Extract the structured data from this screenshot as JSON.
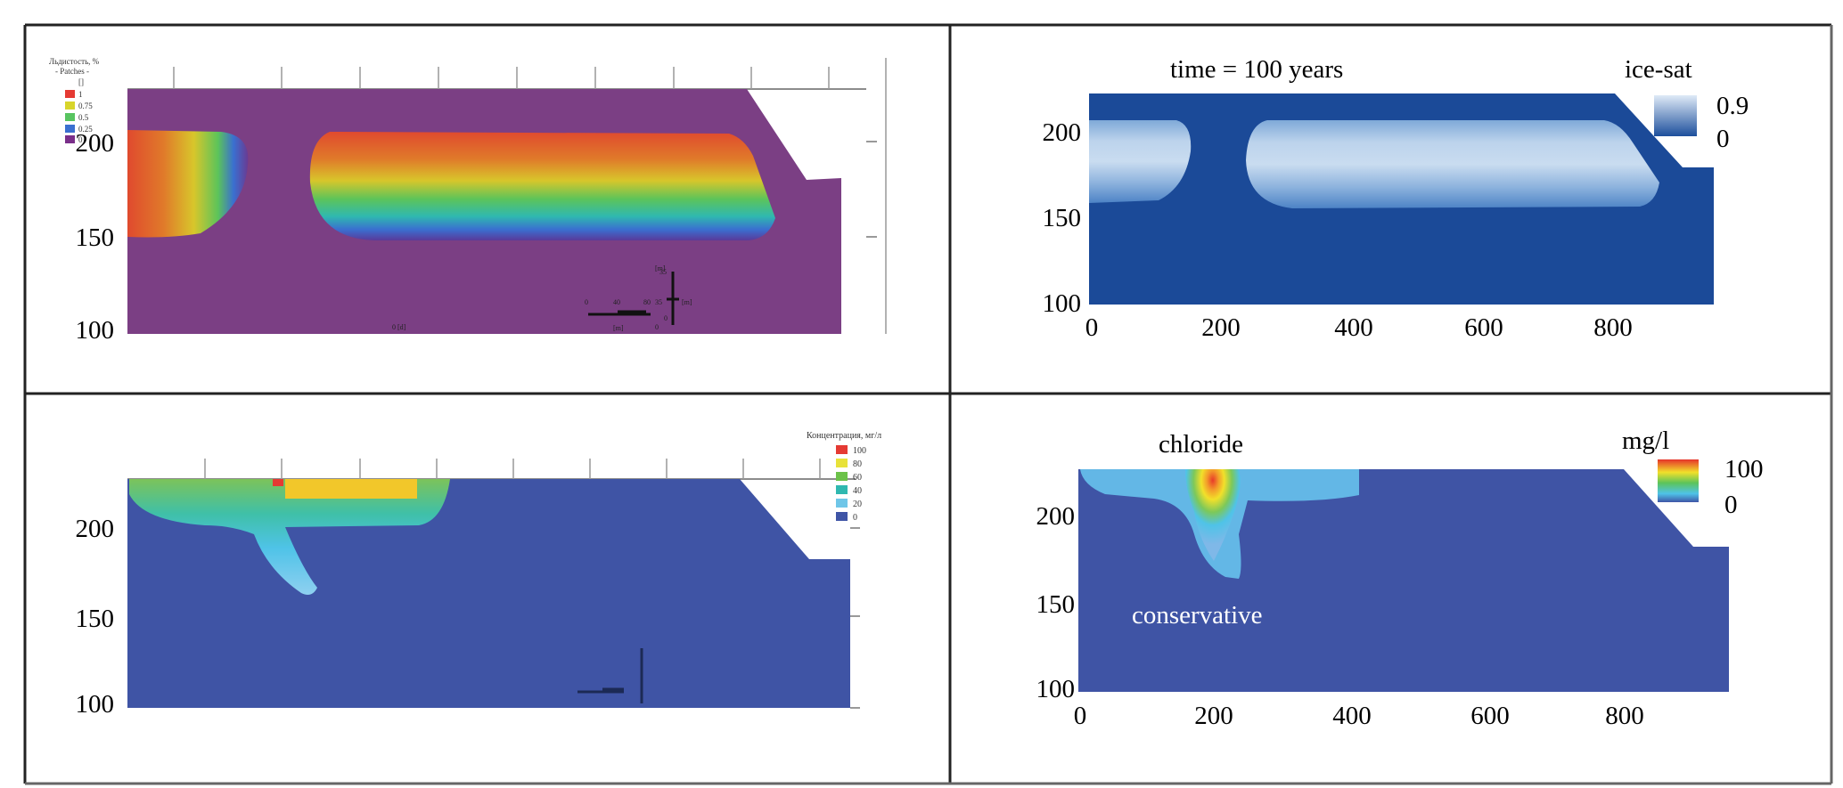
{
  "figure": {
    "panels": [
      {
        "id": "top-left",
        "legend": {
          "title": "Льдистость, %",
          "subtitle": "- Patches -",
          "extra": "[]",
          "entries": [
            {
              "label": "1",
              "color": "#e53a33"
            },
            {
              "label": "0.75",
              "color": "#d8d52b"
            },
            {
              "label": "0.5",
              "color": "#58c460"
            },
            {
              "label": "0.25",
              "color": "#3a6fd0"
            },
            {
              "label": "0",
              "color": "#7a2f8a"
            }
          ]
        },
        "y_ticks": [
          "200",
          "150",
          "100"
        ],
        "scale_labels": [
          "0",
          "40",
          "80",
          "[m]",
          "[m]",
          "0",
          "35",
          "[m]",
          "35",
          "0"
        ],
        "bottom_note": "0 [d]"
      },
      {
        "id": "top-right",
        "title": "time = 100 years",
        "colorbar": {
          "title": "ice-sat",
          "max": "0.9",
          "min": "0"
        },
        "y_ticks": [
          "200",
          "150",
          "100"
        ],
        "x_ticks": [
          "0",
          "200",
          "400",
          "600",
          "800"
        ]
      },
      {
        "id": "bottom-left",
        "legend": {
          "title": "Концентрация, мг/л",
          "entries": [
            {
              "label": "100",
              "color": "#e53a33"
            },
            {
              "label": "80",
              "color": "#e8e23a"
            },
            {
              "label": "60",
              "color": "#6cc24a"
            },
            {
              "label": "40",
              "color": "#2fb8b0"
            },
            {
              "label": "20",
              "color": "#6fc6e8"
            },
            {
              "label": "0",
              "color": "#3f55a6"
            }
          ]
        },
        "y_ticks": [
          "200",
          "150",
          "100"
        ]
      },
      {
        "id": "bottom-right",
        "annotations": {
          "top": "chloride",
          "bottom": "conservative"
        },
        "colorbar": {
          "title": "mg/l",
          "max": "100",
          "min": "0"
        },
        "y_ticks": [
          "200",
          "150",
          "100"
        ],
        "x_ticks": [
          "0",
          "200",
          "400",
          "600",
          "800"
        ]
      }
    ]
  },
  "chart_data": [
    {
      "type": "heatmap",
      "title": "",
      "quantity": "ice content (Льдистость, %)",
      "ylim": [
        100,
        225
      ],
      "yticks": [
        100,
        150,
        200
      ],
      "frozen_zones_x_m": [
        [
          0,
          150
        ],
        [
          240,
          900
        ]
      ],
      "frozen_depth_range_m": [
        150,
        205
      ]
    },
    {
      "type": "heatmap",
      "title": "time = 100 years",
      "quantity": "ice-sat",
      "value_range": [
        0,
        0.9
      ],
      "xlim": [
        0,
        950
      ],
      "xticks": [
        0,
        200,
        400,
        600,
        800
      ],
      "ylim": [
        100,
        225
      ],
      "yticks": [
        100,
        150,
        200
      ],
      "frozen_zones_x_m": [
        [
          0,
          150
        ],
        [
          240,
          870
        ]
      ],
      "frozen_depth_range_m": [
        160,
        205
      ]
    },
    {
      "type": "heatmap",
      "title": "",
      "quantity": "Концентрация, мг/л",
      "value_range": [
        0,
        100
      ],
      "ylim": [
        100,
        225
      ],
      "yticks": [
        100,
        150,
        200
      ],
      "plume_source_x_m": 200
    },
    {
      "type": "heatmap",
      "title": "chloride",
      "quantity": "mg/l",
      "value_range": [
        0,
        100
      ],
      "xlim": [
        0,
        950
      ],
      "xticks": [
        0,
        200,
        400,
        600,
        800
      ],
      "ylim": [
        100,
        225
      ],
      "yticks": [
        100,
        150,
        200
      ],
      "plume_source_x_m": 190,
      "annotation": "conservative"
    }
  ]
}
